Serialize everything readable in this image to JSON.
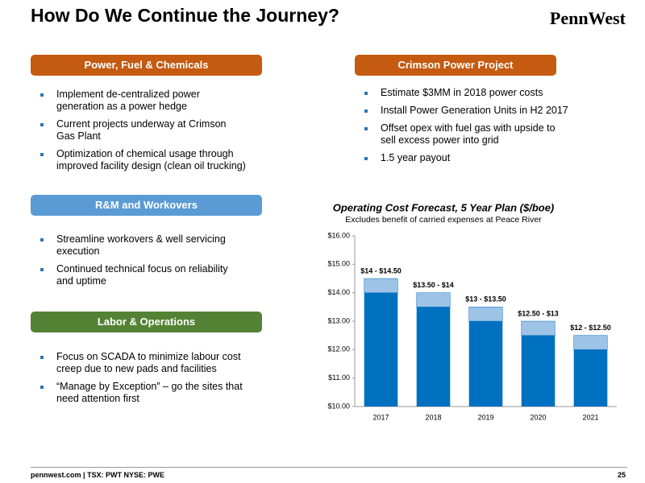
{
  "header": {
    "title": "How Do We Continue the Journey?",
    "logo": "PennWest"
  },
  "sections": [
    {
      "heading": "Power, Fuel & Chemicals",
      "bullets": [
        "Implement de-centralized power generation as a power hedge",
        "Current projects underway at Crimson Gas Plant",
        "Optimization of chemical usage through improved facility design (clean oil trucking)"
      ]
    },
    {
      "heading": "Crimson Power Project",
      "bullets": [
        "Estimate $3MM in 2018 power costs",
        "Install Power Generation Units in H2 2017",
        "Offset opex with fuel gas with upside to sell excess power into grid",
        "1.5 year payout"
      ]
    },
    {
      "heading": "R&M and Workovers",
      "bullets": [
        "Streamline workovers & well servicing execution",
        "Continued technical focus on reliability and uptime"
      ]
    },
    {
      "heading": "Labor & Operations",
      "bullets": [
        "Focus on SCADA to minimize labour cost creep due to new pads and facilities",
        "“Manage by Exception” – go the sites that need attention first"
      ]
    }
  ],
  "chart_data": {
    "type": "range-bar",
    "title": "Operating Cost Forecast, 5 Year Plan ($/boe)",
    "subtitle": "Excludes benefit of carried expenses at Peace River",
    "categories": [
      "2017",
      "2018",
      "2019",
      "2020",
      "2021"
    ],
    "low": [
      14,
      13.5,
      13,
      12.5,
      12
    ],
    "high": [
      14.5,
      14,
      13.5,
      13,
      12.5
    ],
    "value_labels": [
      "$14 - $14.50",
      "$13.50 - $14",
      "$13 - $13.50",
      "$12.50 - $13",
      "$12 - $12.50"
    ],
    "low_color": "#0070c0",
    "range_color": "#9dc3e6",
    "ylim": [
      10,
      16
    ],
    "yticks": [
      {
        "value": 10,
        "label": "$10.00"
      },
      {
        "value": 11,
        "label": "$11.00"
      },
      {
        "value": 12,
        "label": "$12.00"
      },
      {
        "value": 13,
        "label": "$13.00"
      },
      {
        "value": 14,
        "label": "$14.00"
      },
      {
        "value": 15,
        "label": "$15.00"
      },
      {
        "value": 16,
        "label": "$16.00"
      }
    ]
  },
  "footer": {
    "source": "pennwest.com | TSX: PWT NYSE: PWE",
    "page": "25"
  }
}
